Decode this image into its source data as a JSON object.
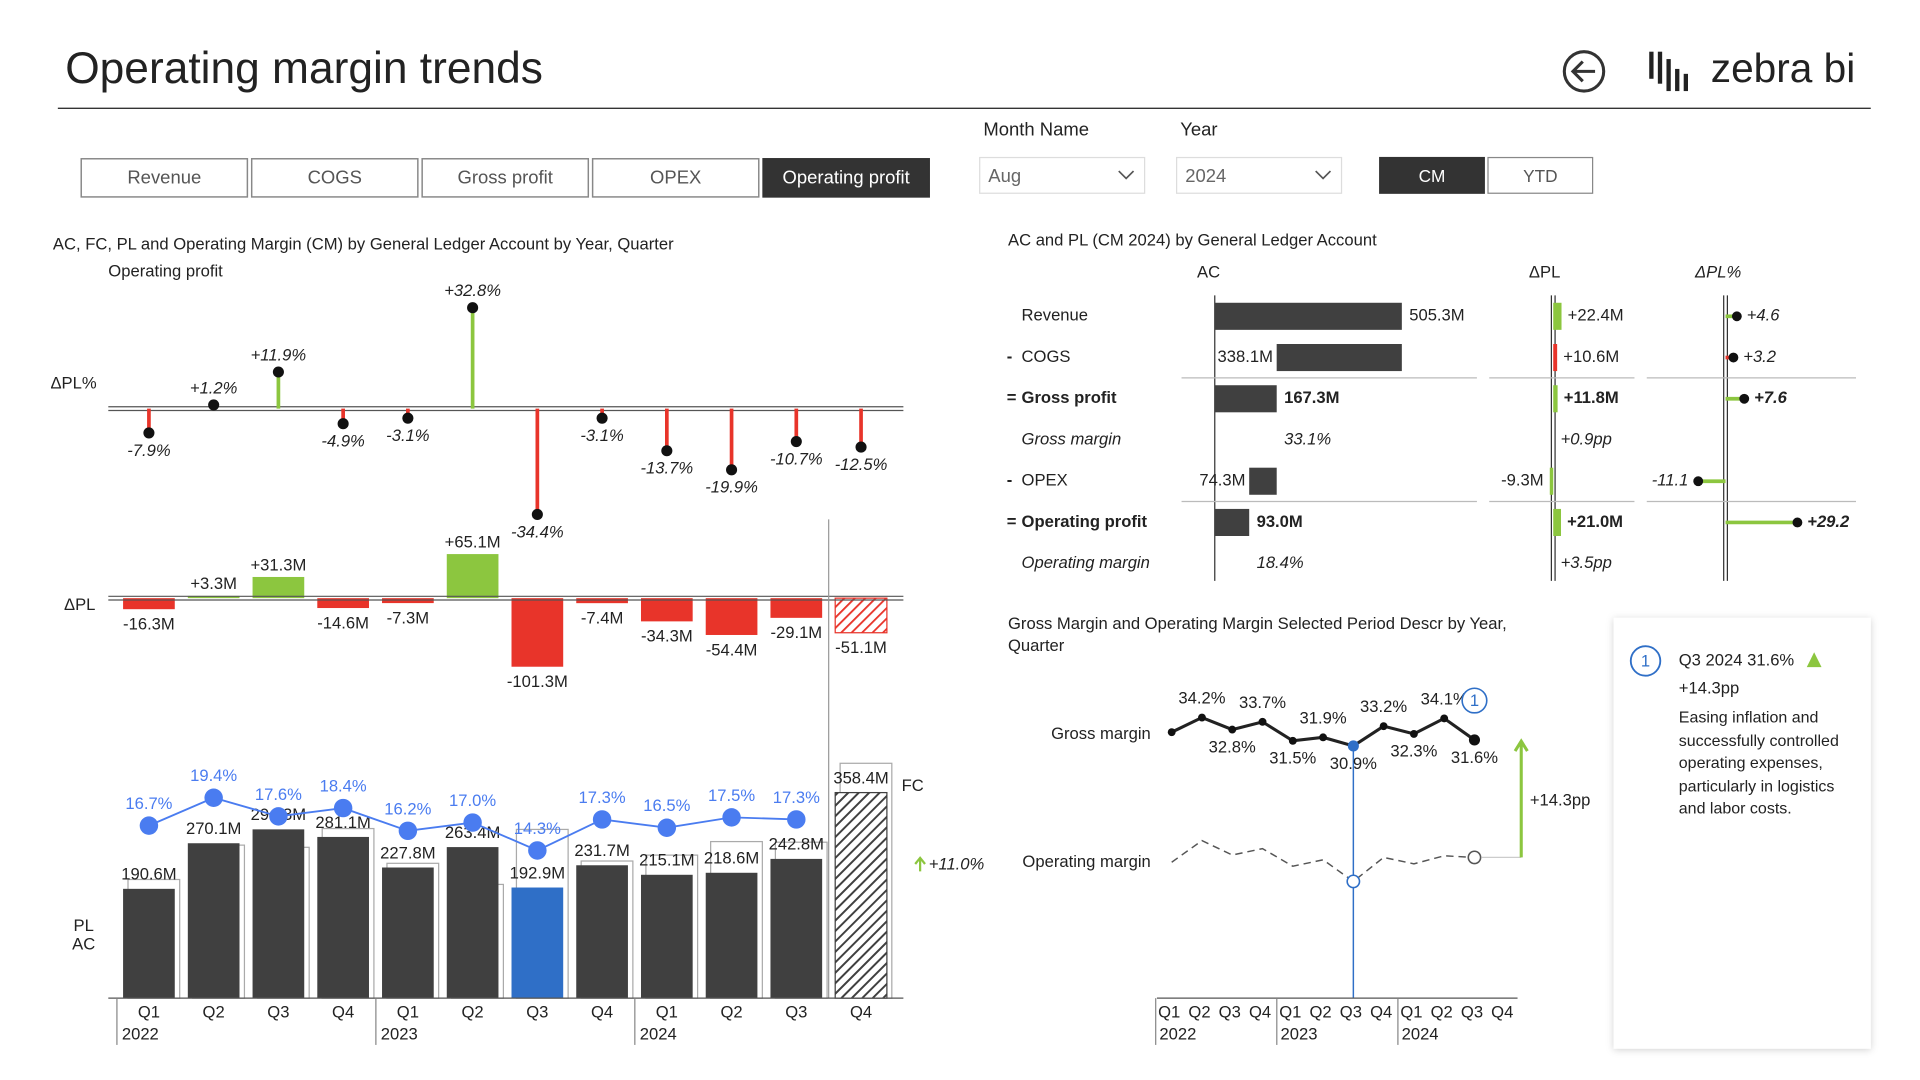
{
  "header": {
    "title": "Operating margin trends",
    "logo": "zebra bi"
  },
  "tabs": {
    "items": [
      "Revenue",
      "COGS",
      "Gross profit",
      "OPEX",
      "Operating profit"
    ],
    "selected": 4
  },
  "filters": {
    "month": {
      "label": "Month Name",
      "value": "Aug"
    },
    "year": {
      "label": "Year",
      "value": "2024"
    },
    "period": {
      "items": [
        "CM",
        "YTD"
      ],
      "selected": 0
    }
  },
  "chart_data": [
    {
      "type": "bar",
      "title": "AC, FC, PL and Operating Margin (CM) by General Ledger Account by Year, Quarter",
      "subtitle": "Operating profit",
      "categories": [
        "Q1",
        "Q2",
        "Q3",
        "Q4",
        "Q1",
        "Q2",
        "Q3",
        "Q4",
        "Q1",
        "Q2",
        "Q3",
        "Q4"
      ],
      "years": [
        "2022",
        "2023",
        "2024"
      ],
      "colors": {
        "positive": "#8cc63f",
        "negative": "#e8342a",
        "ac": "#404040",
        "selected": "#2f6fc7",
        "margin": "#4a7cf0"
      },
      "delta_pct": {
        "label": "ΔPL%",
        "values": [
          -7.9,
          1.2,
          11.9,
          -4.9,
          -3.1,
          32.8,
          -34.4,
          -3.1,
          -13.7,
          -19.9,
          -10.7,
          -12.5
        ],
        "value_labels": [
          "-7.9%",
          "+1.2%",
          "+11.9%",
          "-4.9%",
          "-3.1%",
          "+32.8%",
          "-34.4%",
          "-3.1%",
          "-13.7%",
          "-19.9%",
          "-10.7%",
          "-12.5%"
        ]
      },
      "delta": {
        "label": "ΔPL",
        "values": [
          -16.3,
          3.3,
          31.3,
          -14.6,
          -7.3,
          65.1,
          -101.3,
          -7.4,
          -34.3,
          -54.4,
          -29.1,
          -51.1
        ],
        "value_labels": [
          "-16.3M",
          "+3.3M",
          "+31.3M",
          "-14.6M",
          "-7.3M",
          "+65.1M",
          "-101.3M",
          "-7.4M",
          "-34.3M",
          "-54.4M",
          "-29.1M",
          "-51.1M"
        ]
      },
      "series": [
        {
          "name": "PL",
          "color": "#aaaaaa",
          "values": [
            206.9,
            266.8,
            263.0,
            295.7,
            235.1,
            198.3,
            294.2,
            239.1,
            249.4,
            273.0,
            271.9,
            409.5
          ]
        },
        {
          "name": "AC",
          "color": "#404040",
          "values": [
            190.6,
            270.1,
            294.3,
            281.1,
            227.8,
            263.4,
            192.9,
            231.7,
            215.1,
            218.6,
            242.8,
            358.4
          ],
          "value_labels": [
            "190.6M",
            "270.1M",
            "294.3M",
            "281.1M",
            "227.8M",
            "263.4M",
            "192.9M",
            "231.7M",
            "215.1M",
            "218.6M",
            "242.8M",
            "358.4M"
          ]
        }
      ],
      "margin": {
        "values": [
          16.7,
          19.4,
          17.6,
          18.4,
          16.2,
          17.0,
          14.3,
          17.3,
          16.5,
          17.5,
          17.3,
          null
        ],
        "value_labels": [
          "16.7%",
          "19.4%",
          "17.6%",
          "18.4%",
          "16.2%",
          "17.0%",
          "14.3%",
          "17.3%",
          "16.5%",
          "17.5%",
          "17.3%",
          null
        ]
      },
      "forecast_label": "FC",
      "forecast_index": 11,
      "forecast_annotation": "+11.0%",
      "selected": 6
    },
    {
      "type": "waterfall",
      "title": "AC and PL (CM 2024) by General Ledger Account",
      "columns": [
        "AC",
        "ΔPL",
        "ΔPL%"
      ],
      "rows": [
        {
          "label": "Revenue",
          "ac": 505.3,
          "ac_label": "505.3M",
          "delta": 22.4,
          "delta_label": "+22.4M",
          "delta_pct": 4.6,
          "delta_pct_label": "+4.6",
          "color": "#8cc63f"
        },
        {
          "sign": "-",
          "label": "COGS",
          "ac": 338.1,
          "ac_label": "338.1M",
          "delta": 10.6,
          "delta_label": "+10.6M",
          "delta_pct": 3.2,
          "delta_pct_label": "+3.2",
          "color": "#e8342a"
        },
        {
          "sign": "=",
          "label": "Gross profit",
          "ac": 167.3,
          "ac_label": "167.3M",
          "delta": 11.8,
          "delta_label": "+11.8M",
          "delta_pct": 7.6,
          "delta_pct_label": "+7.6",
          "color": "#8cc63f"
        },
        {
          "label": "Gross margin",
          "ac": 33.1,
          "ac_label": "33.1%",
          "delta": 0.9,
          "delta_label": "+0.9pp"
        },
        {
          "sign": "-",
          "label": "OPEX",
          "ac": 74.3,
          "ac_label": "74.3M",
          "delta": -9.3,
          "delta_label": "-9.3M",
          "delta_pct": -11.1,
          "delta_pct_label": "-11.1",
          "color": "#8cc63f"
        },
        {
          "sign": "=",
          "label": "Operating profit",
          "ac": 93.0,
          "ac_label": "93.0M",
          "delta": 21.0,
          "delta_label": "+21.0M",
          "delta_pct": 29.2,
          "delta_pct_label": "+29.2",
          "color": "#8cc63f"
        },
        {
          "label": "Operating margin",
          "ac": 18.4,
          "ac_label": "18.4%",
          "delta": 3.5,
          "delta_label": "+3.5pp"
        }
      ]
    },
    {
      "type": "line",
      "title": "Gross Margin and Operating Margin Selected Period Descr by Year, Quarter",
      "categories": [
        "Q1",
        "Q2",
        "Q3",
        "Q4",
        "Q1",
        "Q2",
        "Q3",
        "Q4",
        "Q1",
        "Q2",
        "Q3",
        "Q4"
      ],
      "years": [
        "2022",
        "2023",
        "2024"
      ],
      "series": [
        {
          "name": "Gross margin",
          "color": "#222222",
          "values": [
            32.5,
            34.2,
            32.8,
            33.7,
            31.5,
            31.9,
            30.9,
            33.2,
            32.3,
            34.1,
            31.6,
            null
          ],
          "value_labels": [
            null,
            "34.2%",
            "32.8%",
            "33.7%",
            "31.5%",
            "31.9%",
            "30.9%",
            "33.2%",
            "32.3%",
            "34.1%",
            "31.6%",
            null
          ]
        },
        {
          "name": "Operating margin",
          "color": "#555555",
          "values": [
            16.7,
            19.4,
            17.6,
            18.4,
            16.2,
            17.0,
            14.3,
            17.3,
            16.5,
            17.5,
            17.3,
            null
          ]
        }
      ],
      "selected": 6,
      "highlight": 10,
      "annotation": "+14.3pp",
      "colors": {
        "selected": "#2f6fc7",
        "annotation": "#8cc63f"
      }
    }
  ],
  "card": {
    "marker": "1",
    "headline": "Q3 2024 31.6%",
    "delta": "+14.3pp",
    "text": "Easing inflation and successfully controlled operating expenses, particularly in logistics and labor costs."
  }
}
